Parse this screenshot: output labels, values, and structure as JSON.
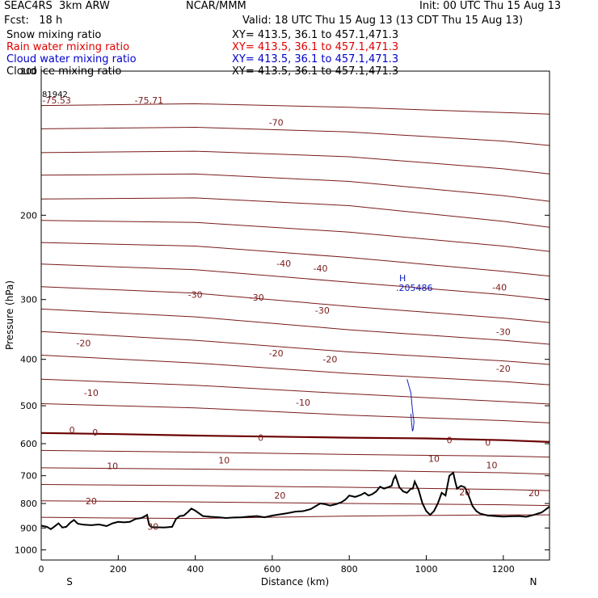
{
  "header": {
    "model": "SEAC4RS  3km ARW",
    "org": "NCAR/MMM",
    "init": "Init: 00 UTC Thu 15 Aug 13",
    "fcst": "Fcst:   18 h",
    "valid": "Valid: 18 UTC Thu 15 Aug 13 (13 CDT Thu 15 Aug 13)"
  },
  "fields": [
    {
      "name": "Snow mixing ratio",
      "xy": "XY= 413.5, 36.1 to 457.1,471.3",
      "color": "#000000"
    },
    {
      "name": "Rain water mixing ratio",
      "xy": "XY= 413.5, 36.1 to 457.1,471.3",
      "color": "#e00000"
    },
    {
      "name": "Cloud water mixing ratio",
      "xy": "XY= 413.5, 36.1 to 457.1,471.3",
      "color": "#0000cc"
    },
    {
      "name": "Cloud ice mixing ratio",
      "xy": "XY= 413.5, 36.1 to 457.1,471.3",
      "color": "#000000"
    }
  ],
  "colors": {
    "contour": "#7a1a1a",
    "zero_contour": "#6b0000",
    "terrain": "#000000",
    "cloud": "#1020c0"
  },
  "chart_data": {
    "type": "line",
    "xlabel": "Distance (km)",
    "ylabel": "Pressure (hPa)",
    "xlim": [
      0,
      1320
    ],
    "ylim": [
      100,
      1050
    ],
    "y_scale": "log",
    "x_ticks": [
      0,
      200,
      400,
      600,
      800,
      1000,
      1200
    ],
    "y_ticks": [
      100,
      200,
      300,
      400,
      500,
      600,
      700,
      800,
      900,
      1000
    ],
    "x_tick_labels": [
      "0",
      "200",
      "400",
      "600",
      "800",
      "1000",
      "1200"
    ],
    "y_tick_labels": [
      "100",
      "200",
      "300",
      "400",
      "500",
      "600",
      "700",
      "800",
      "900",
      "1000"
    ],
    "start_label": "S",
    "end_label": "N",
    "max_marker": {
      "label": "H",
      "value": ".205486",
      "x": 960,
      "p": 490
    },
    "corner_note": "81942",
    "temperature_labels": [
      {
        "text": "-75.53",
        "x": 40,
        "p": 115
      },
      {
        "text": "-75.71",
        "x": 280,
        "p": 115
      },
      {
        "text": "-70",
        "x": 610,
        "p": 128
      },
      {
        "text": "-40",
        "x": 630,
        "p": 252
      },
      {
        "text": "-40",
        "x": 725,
        "p": 258
      },
      {
        "text": "-40",
        "x": 1190,
        "p": 283
      },
      {
        "text": "-30",
        "x": 400,
        "p": 293
      },
      {
        "text": "-30",
        "x": 560,
        "p": 297
      },
      {
        "text": "-30",
        "x": 730,
        "p": 316
      },
      {
        "text": "-30",
        "x": 1200,
        "p": 350
      },
      {
        "text": "-20",
        "x": 110,
        "p": 370
      },
      {
        "text": "-20",
        "x": 610,
        "p": 388
      },
      {
        "text": "-20",
        "x": 750,
        "p": 400
      },
      {
        "text": "-20",
        "x": 1200,
        "p": 418
      },
      {
        "text": "-10",
        "x": 130,
        "p": 470
      },
      {
        "text": "-10",
        "x": 680,
        "p": 492
      },
      {
        "text": "0",
        "x": 80,
        "p": 562
      },
      {
        "text": "0",
        "x": 140,
        "p": 568
      },
      {
        "text": "0",
        "x": 570,
        "p": 583
      },
      {
        "text": "0",
        "x": 1060,
        "p": 590
      },
      {
        "text": "0",
        "x": 1160,
        "p": 597
      },
      {
        "text": "10",
        "x": 185,
        "p": 668
      },
      {
        "text": "10",
        "x": 475,
        "p": 650
      },
      {
        "text": "10",
        "x": 1020,
        "p": 645
      },
      {
        "text": "10",
        "x": 1170,
        "p": 665
      },
      {
        "text": "20",
        "x": 130,
        "p": 790
      },
      {
        "text": "20",
        "x": 620,
        "p": 770
      },
      {
        "text": "20",
        "x": 1100,
        "p": 758
      },
      {
        "text": "20",
        "x": 1280,
        "p": 760
      },
      {
        "text": "30",
        "x": 290,
        "p": 893
      }
    ],
    "zero_isotherm": {
      "x": [
        0,
        200,
        400,
        600,
        800,
        1000,
        1200,
        1320
      ],
      "p": [
        570,
        573,
        577,
        580,
        583,
        585,
        590,
        595
      ]
    },
    "isotherms": [
      {
        "x": [
          0,
          400,
          800,
          1200,
          1320
        ],
        "p": [
          118,
          117,
          119,
          122,
          123
        ]
      },
      {
        "x": [
          0,
          400,
          800,
          1200,
          1320
        ],
        "p": [
          132,
          131,
          134,
          140,
          143
        ]
      },
      {
        "x": [
          0,
          400,
          800,
          1200,
          1320
        ],
        "p": [
          148,
          147,
          151,
          160,
          164
        ]
      },
      {
        "x": [
          0,
          400,
          800,
          1200,
          1320
        ],
        "p": [
          165,
          164,
          170,
          182,
          187
        ]
      },
      {
        "x": [
          0,
          400,
          800,
          1200,
          1320
        ],
        "p": [
          185,
          184,
          191,
          206,
          212
        ]
      },
      {
        "x": [
          0,
          400,
          800,
          1200,
          1320
        ],
        "p": [
          205,
          207,
          217,
          232,
          238
        ]
      },
      {
        "x": [
          0,
          400,
          800,
          1200,
          1320
        ],
        "p": [
          228,
          232,
          245,
          262,
          268
        ]
      },
      {
        "x": [
          0,
          400,
          800,
          1200,
          1320
        ],
        "p": [
          253,
          260,
          276,
          293,
          300
        ]
      },
      {
        "x": [
          0,
          400,
          800,
          1200,
          1320
        ],
        "p": [
          282,
          291,
          310,
          328,
          335
        ]
      },
      {
        "x": [
          0,
          400,
          800,
          1200,
          1320
        ],
        "p": [
          314,
          326,
          347,
          365,
          372
        ]
      },
      {
        "x": [
          0,
          400,
          800,
          1200,
          1320
        ],
        "p": [
          350,
          365,
          386,
          403,
          410
        ]
      },
      {
        "x": [
          0,
          400,
          800,
          1200,
          1320
        ],
        "p": [
          392,
          407,
          428,
          445,
          452
        ]
      },
      {
        "x": [
          0,
          400,
          800,
          1200,
          1320
        ],
        "p": [
          440,
          453,
          472,
          490,
          496
        ]
      },
      {
        "x": [
          0,
          400,
          800,
          1200,
          1320
        ],
        "p": [
          495,
          505,
          523,
          537,
          543
        ]
      },
      {
        "x": [
          0,
          400,
          800,
          1200,
          1320
        ],
        "p": [
          620,
          625,
          632,
          637,
          640
        ]
      },
      {
        "x": [
          0,
          400,
          800,
          1200,
          1320
        ],
        "p": [
          674,
          678,
          682,
          690,
          695
        ]
      },
      {
        "x": [
          0,
          200,
          400,
          800,
          1200,
          1320
        ],
        "p": [
          730,
          732,
          734,
          740,
          748,
          752
        ]
      },
      {
        "x": [
          0,
          200,
          400,
          800,
          1200,
          1320
        ],
        "p": [
          790,
          792,
          794,
          800,
          805,
          808
        ]
      },
      {
        "x": [
          0,
          200,
          400,
          800,
          1200,
          1320
        ],
        "p": [
          855,
          858,
          860,
          850,
          845,
          845
        ]
      }
    ],
    "terrain": {
      "x": [
        0,
        15,
        25,
        35,
        45,
        55,
        65,
        75,
        85,
        95,
        110,
        130,
        150,
        170,
        185,
        200,
        215,
        230,
        245,
        260,
        270,
        275,
        280,
        285,
        290,
        300,
        320,
        340,
        350,
        360,
        370,
        380,
        390,
        400,
        420,
        440,
        460,
        480,
        500,
        520,
        540,
        560,
        580,
        600,
        620,
        640,
        660,
        680,
        700,
        715,
        725,
        735,
        750,
        765,
        780,
        790,
        800,
        815,
        830,
        840,
        850,
        860,
        870,
        880,
        890,
        900,
        910,
        915,
        920,
        930,
        940,
        950,
        960,
        965,
        970,
        980,
        990,
        1000,
        1010,
        1020,
        1030,
        1040,
        1050,
        1060,
        1070,
        1075,
        1080,
        1090,
        1100,
        1110,
        1120,
        1130,
        1140,
        1160,
        1180,
        1200,
        1220,
        1240,
        1260,
        1280,
        1300,
        1320
      ],
      "p": [
        890,
        895,
        905,
        893,
        880,
        898,
        895,
        878,
        866,
        882,
        886,
        888,
        885,
        892,
        880,
        874,
        876,
        874,
        862,
        858,
        850,
        845,
        885,
        895,
        897,
        897,
        898,
        895,
        862,
        850,
        848,
        835,
        820,
        828,
        850,
        853,
        855,
        858,
        856,
        855,
        852,
        850,
        855,
        848,
        843,
        838,
        832,
        830,
        822,
        808,
        800,
        802,
        808,
        803,
        795,
        785,
        770,
        775,
        768,
        760,
        770,
        765,
        755,
        738,
        745,
        740,
        735,
        712,
        700,
        740,
        755,
        760,
        745,
        745,
        720,
        750,
        800,
        830,
        845,
        830,
        800,
        760,
        770,
        700,
        690,
        720,
        745,
        735,
        740,
        770,
        810,
        830,
        840,
        848,
        850,
        852,
        851,
        850,
        853,
        845,
        835,
        812
      ]
    },
    "cloud_contour": {
      "x": [
        950,
        955,
        960,
        962,
        964,
        966,
        968,
        966,
        964,
        962,
        960
      ],
      "p": [
        440,
        455,
        470,
        490,
        510,
        525,
        540,
        560,
        565,
        545,
        520
      ]
    }
  }
}
